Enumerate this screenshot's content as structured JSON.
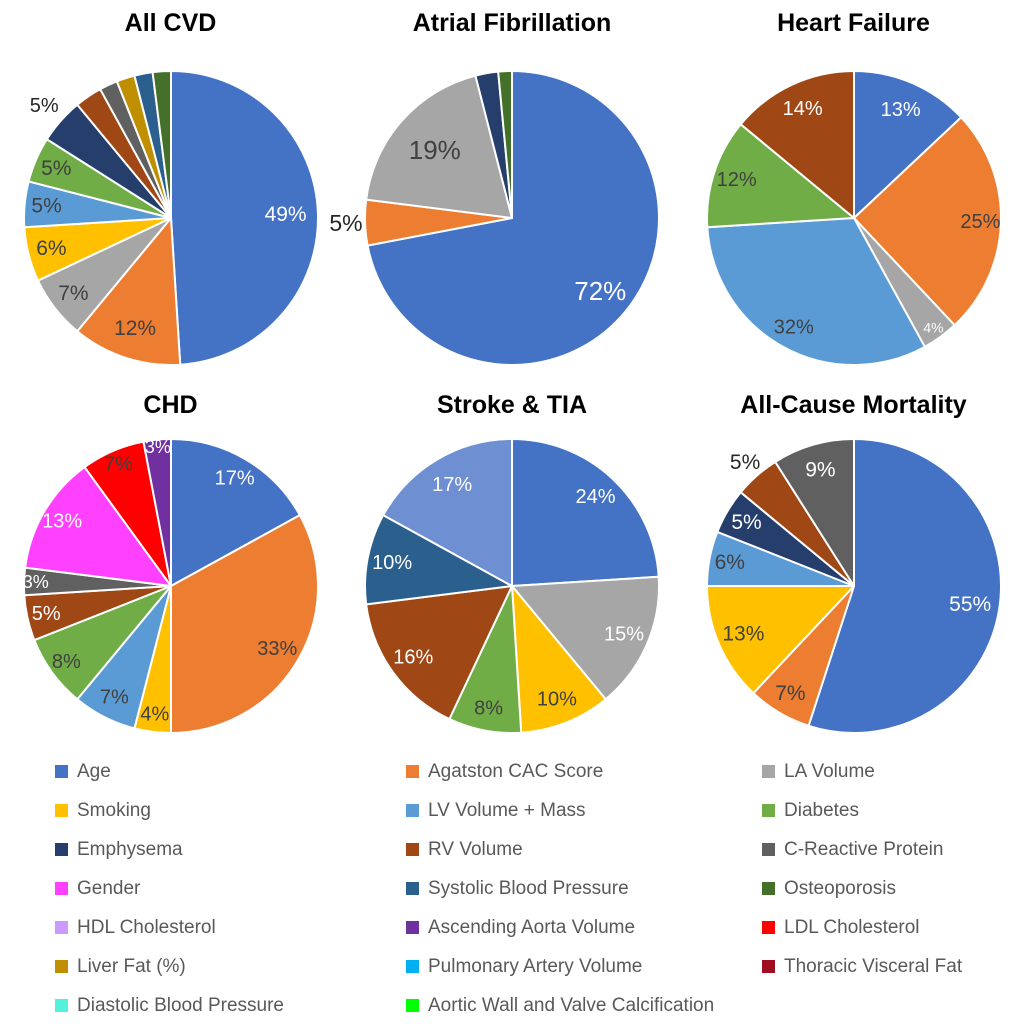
{
  "text_colors": {
    "w": "#FFFFFF",
    "d": "#404040",
    "out": "#262626"
  },
  "chart_data": [
    {
      "type": "pie",
      "title": "All CVD",
      "label_size": 21,
      "slices": [
        {
          "label": "Age",
          "value": 49,
          "text": "49%",
          "color": "#4472C4",
          "tc": "w",
          "lf": 0.78
        },
        {
          "label": "Agatston CAC Score",
          "value": 12,
          "text": "12%",
          "color": "#ED7D31",
          "tc": "d",
          "lf": 0.79
        },
        {
          "label": "LA Volume",
          "value": 7,
          "text": "7%",
          "color": "#A6A6A6",
          "tc": "d",
          "lf": 0.84
        },
        {
          "label": "Smoking",
          "value": 6,
          "text": "6%",
          "color": "#FFC000",
          "tc": "d",
          "lf": 0.84
        },
        {
          "label": "LV Volume + Mass",
          "value": 5,
          "text": "5%",
          "color": "#5B9BD5",
          "tc": "d",
          "lf": 0.85
        },
        {
          "label": "Diabetes",
          "value": 5,
          "text": "5%",
          "color": "#70AD47",
          "tc": "d",
          "lf": 0.85
        },
        {
          "label": "Emphysema",
          "value": 5,
          "text": "5%",
          "color": "#253E6C",
          "tc": "out",
          "lf": 1.15,
          "fs": 20
        },
        {
          "label": "RV Volume",
          "value": 3,
          "text": "",
          "color": "#A04815"
        },
        {
          "label": "C-Reactive Protein",
          "value": 2,
          "text": "",
          "color": "#606060"
        },
        {
          "label": "Liver Fat (%)",
          "value": 2,
          "text": "",
          "color": "#BF8F00"
        },
        {
          "label": "Systolic Blood Pressure",
          "value": 2,
          "text": "",
          "color": "#2B5F8E"
        },
        {
          "label": "Osteoporosis",
          "value": 2,
          "text": "",
          "color": "#447029"
        }
      ]
    },
    {
      "type": "pie",
      "title": "Atrial Fibrillation",
      "label_size": 26,
      "slices": [
        {
          "label": "Age",
          "value": 72,
          "text": "72%",
          "color": "#4472C4",
          "tc": "w",
          "lf": 0.78
        },
        {
          "label": "Agatston CAC Score",
          "value": 5,
          "text": "5%",
          "color": "#ED7D31",
          "tc": "out",
          "lf": 1.13,
          "fs": 23
        },
        {
          "label": "LA Volume",
          "value": 19,
          "text": "19%",
          "color": "#A6A6A6",
          "tc": "d",
          "lf": 0.7
        },
        {
          "label": "Emphysema",
          "value": 2.5,
          "text": "",
          "color": "#253E6C"
        },
        {
          "label": "Osteoporosis",
          "value": 1.5,
          "text": "",
          "color": "#447029"
        }
      ]
    },
    {
      "type": "pie",
      "title": "Heart Failure",
      "label_size": 20,
      "slices": [
        {
          "label": "Age",
          "value": 13,
          "text": "13%",
          "color": "#4472C4",
          "tc": "w",
          "lf": 0.8
        },
        {
          "label": "Agatston CAC Score",
          "value": 25,
          "text": "25%",
          "color": "#ED7D31",
          "tc": "d",
          "lf": 0.86
        },
        {
          "label": "LA Volume",
          "value": 4,
          "text": "4%",
          "color": "#A6A6A6",
          "tc": "w",
          "lf": 0.92,
          "fs": 14
        },
        {
          "label": "LV Volume + Mass",
          "value": 32,
          "text": "32%",
          "color": "#5B9BD5",
          "tc": "d",
          "lf": 0.85
        },
        {
          "label": "Diabetes",
          "value": 12,
          "text": "12%",
          "color": "#70AD47",
          "tc": "d",
          "lf": 0.84
        },
        {
          "label": "RV Volume",
          "value": 14,
          "text": "14%",
          "color": "#A04815",
          "tc": "w",
          "lf": 0.82
        }
      ]
    },
    {
      "type": "pie",
      "title": "CHD",
      "label_size": 20,
      "slices": [
        {
          "label": "Age",
          "value": 17,
          "text": "17%",
          "color": "#4472C4",
          "tc": "w",
          "lf": 0.85
        },
        {
          "label": "Agatston CAC Score",
          "value": 33,
          "text": "33%",
          "color": "#ED7D31",
          "tc": "d",
          "lf": 0.84
        },
        {
          "label": "Smoking",
          "value": 4,
          "text": "4%",
          "color": "#FFC000",
          "tc": "d",
          "lf": 0.88
        },
        {
          "label": "LV Volume + Mass",
          "value": 7,
          "text": "7%",
          "color": "#5B9BD5",
          "tc": "d",
          "lf": 0.85
        },
        {
          "label": "Diabetes",
          "value": 8,
          "text": "8%",
          "color": "#70AD47",
          "tc": "d",
          "lf": 0.88
        },
        {
          "label": "RV Volume",
          "value": 5,
          "text": "5%",
          "color": "#A04815",
          "tc": "w",
          "lf": 0.87
        },
        {
          "label": "C-Reactive Protein",
          "value": 3,
          "text": "3%",
          "color": "#606060",
          "tc": "w",
          "lf": 0.92,
          "fs": 18
        },
        {
          "label": "Gender",
          "value": 13,
          "text": "13%",
          "color": "#FF40FF",
          "tc": "w",
          "lf": 0.86
        },
        {
          "label": "LDL Cholesterol",
          "value": 7,
          "text": "7%",
          "color": "#FF0000",
          "tc": "d",
          "lf": 0.9
        },
        {
          "label": "Ascending Aorta Volume",
          "value": 3,
          "text": "3%",
          "color": "#7030A0",
          "tc": "w",
          "lf": 0.95,
          "fs": 18
        }
      ]
    },
    {
      "type": "pie",
      "title": "Stroke & TIA",
      "label_size": 20,
      "slices": [
        {
          "label": "Age",
          "value": 24,
          "text": "24%",
          "color": "#4472C4",
          "tc": "w",
          "lf": 0.83
        },
        {
          "label": "LA Volume",
          "value": 15,
          "text": "15%",
          "color": "#A6A6A6",
          "tc": "w",
          "lf": 0.83
        },
        {
          "label": "Smoking",
          "value": 10,
          "text": "10%",
          "color": "#FFC000",
          "tc": "d",
          "lf": 0.83
        },
        {
          "label": "Diabetes",
          "value": 8,
          "text": "8%",
          "color": "#70AD47",
          "tc": "d",
          "lf": 0.85
        },
        {
          "label": "RV Volume",
          "value": 16,
          "text": "16%",
          "color": "#A04815",
          "tc": "w",
          "lf": 0.83
        },
        {
          "label": "Systolic Blood Pressure",
          "value": 10,
          "text": "10%",
          "color": "#2B5F8E",
          "tc": "w",
          "lf": 0.83
        },
        {
          "label": "LV Volume + Mass",
          "value": 17,
          "text": "17%",
          "color": "#6E8FD2",
          "tc": "w",
          "lf": 0.8
        }
      ]
    },
    {
      "type": "pie",
      "title": "All-Cause Mortality",
      "label_size": 21,
      "slices": [
        {
          "label": "Age",
          "value": 55,
          "text": "55%",
          "color": "#4472C4",
          "tc": "w",
          "lf": 0.8
        },
        {
          "label": "Agatston CAC Score",
          "value": 7,
          "text": "7%",
          "color": "#ED7D31",
          "tc": "d",
          "lf": 0.85
        },
        {
          "label": "Smoking",
          "value": 13,
          "text": "13%",
          "color": "#FFC000",
          "tc": "d",
          "lf": 0.82
        },
        {
          "label": "LV Volume + Mass",
          "value": 6,
          "text": "6%",
          "color": "#5B9BD5",
          "tc": "d",
          "lf": 0.86
        },
        {
          "label": "Emphysema",
          "value": 5,
          "text": "5%",
          "color": "#253E6C",
          "tc": "w",
          "lf": 0.85
        },
        {
          "label": "RV Volume",
          "value": 5,
          "text": "5%",
          "color": "#A04815",
          "tc": "out",
          "lf": 1.12,
          "fs": 21
        },
        {
          "label": "C-Reactive Protein",
          "value": 9,
          "text": "9%",
          "color": "#606060",
          "tc": "w",
          "lf": 0.82
        }
      ]
    }
  ],
  "legend": {
    "columns": [
      [
        {
          "label": "Age",
          "color": "#4472C4"
        },
        {
          "label": "Smoking",
          "color": "#FFC000"
        },
        {
          "label": "Emphysema",
          "color": "#253E6C"
        },
        {
          "label": "Gender",
          "color": "#FF40FF"
        },
        {
          "label": "HDL Cholesterol",
          "color": "#CC99FF"
        },
        {
          "label": "Liver Fat (%)",
          "color": "#BF8F00"
        },
        {
          "label": "Diastolic Blood Pressure",
          "color": "#50F2DE"
        }
      ],
      [
        {
          "label": "Agatston CAC Score",
          "color": "#ED7D31"
        },
        {
          "label": "LV Volume + Mass",
          "color": "#5B9BD5"
        },
        {
          "label": "RV Volume",
          "color": "#A04815"
        },
        {
          "label": "Systolic Blood Pressure",
          "color": "#2B5F8E"
        },
        {
          "label": "Ascending Aorta Volume",
          "color": "#7030A0"
        },
        {
          "label": "Pulmonary Artery Volume",
          "color": "#00B0F0"
        },
        {
          "label": "Aortic Wall and Valve Calcification",
          "color": "#00FF00"
        }
      ],
      [
        {
          "label": "LA Volume",
          "color": "#A6A6A6"
        },
        {
          "label": "Diabetes",
          "color": "#70AD47"
        },
        {
          "label": "C-Reactive Protein",
          "color": "#606060"
        },
        {
          "label": "Osteoporosis",
          "color": "#447029"
        },
        {
          "label": "LDL Cholesterol",
          "color": "#FF0000"
        },
        {
          "label": "Thoracic Visceral Fat",
          "color": "#A00D21"
        }
      ]
    ]
  }
}
